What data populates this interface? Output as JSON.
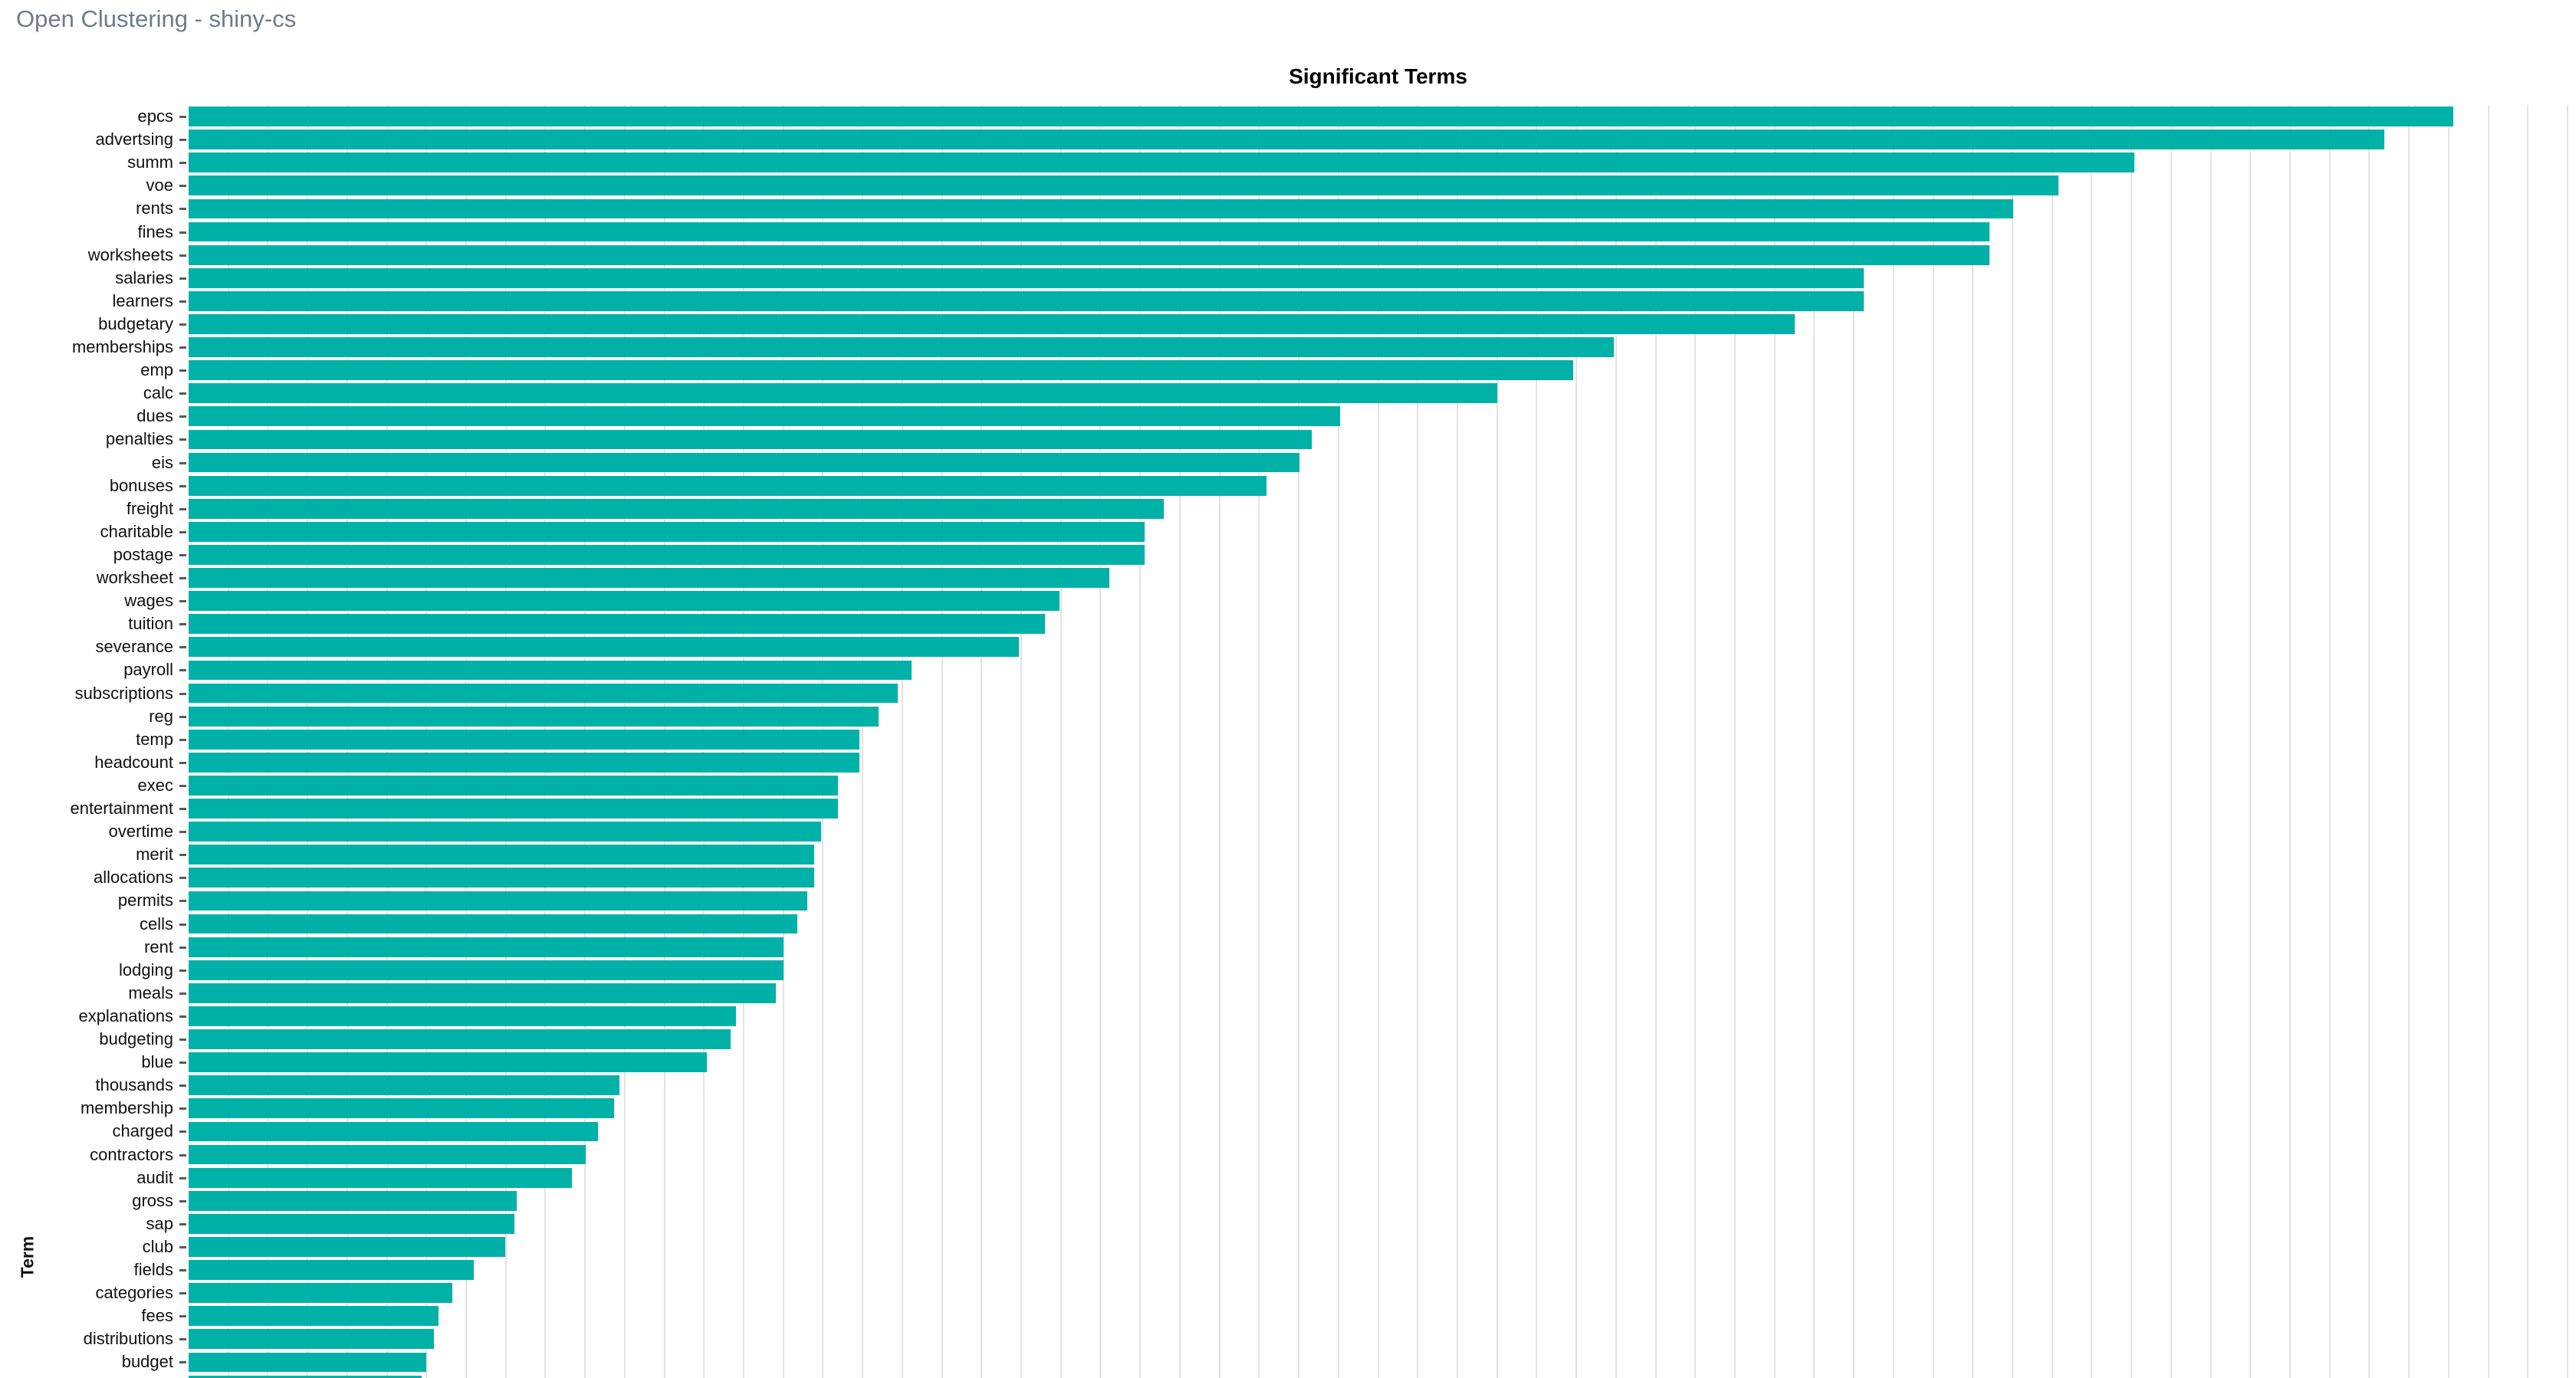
{
  "header": {
    "title": "Open Clustering - shiny-cs"
  },
  "chart_data": {
    "type": "bar",
    "orientation": "horizontal",
    "title": "Significant Terms",
    "ylabel": "Term",
    "legend_position": "none",
    "grid": "vertical minor gridlines, unlabeled",
    "x_axis": {
      "tick_labels_visible": false,
      "note": "x tick labels cut off below viewport"
    },
    "xlim": [
      0,
      100
    ],
    "bar_color": "#00b1a7",
    "gridline_color": "#e3e3e3",
    "categories": [
      "epcs",
      "advertsing",
      "summ",
      "voe",
      "rents",
      "fines",
      "worksheets",
      "salaries",
      "learners",
      "budgetary",
      "memberships",
      "emp",
      "calc",
      "dues",
      "penalties",
      "eis",
      "bonuses",
      "freight",
      "charitable",
      "postage",
      "worksheet",
      "wages",
      "tuition",
      "severance",
      "payroll",
      "subscriptions",
      "reg",
      "temp",
      "headcount",
      "exec",
      "entertainment",
      "overtime",
      "merit",
      "allocations",
      "permits",
      "cells",
      "rent",
      "lodging",
      "meals",
      "explanations",
      "budgeting",
      "blue",
      "thousands",
      "membership",
      "charged",
      "contractors",
      "audit",
      "gross",
      "sap",
      "club",
      "fields",
      "categories",
      "fees",
      "distributions",
      "budget"
    ],
    "values": [
      95.2,
      92.3,
      81.8,
      78.6,
      76.7,
      75.7,
      75.7,
      70.4,
      70.4,
      67.5,
      59.9,
      58.2,
      55.0,
      48.4,
      47.2,
      46.7,
      45.3,
      41.0,
      40.2,
      40.2,
      38.7,
      36.6,
      36.0,
      34.9,
      30.4,
      29.8,
      29.0,
      28.2,
      28.2,
      27.3,
      27.3,
      26.6,
      26.3,
      26.3,
      26.0,
      25.6,
      25.0,
      25.0,
      24.7,
      23.0,
      22.8,
      21.8,
      18.1,
      17.9,
      17.2,
      16.7,
      16.1,
      13.8,
      13.7,
      13.3,
      12.0,
      11.1,
      10.5,
      10.3,
      10.0
    ],
    "values_unit": "percent of x-axis span (axis value labels not visible in screenshot)",
    "clipped_bottom_row": {
      "value": 9.8,
      "note": "next bar partially visible at bottom edge; its label is cut off"
    },
    "gridline_count": 60
  }
}
